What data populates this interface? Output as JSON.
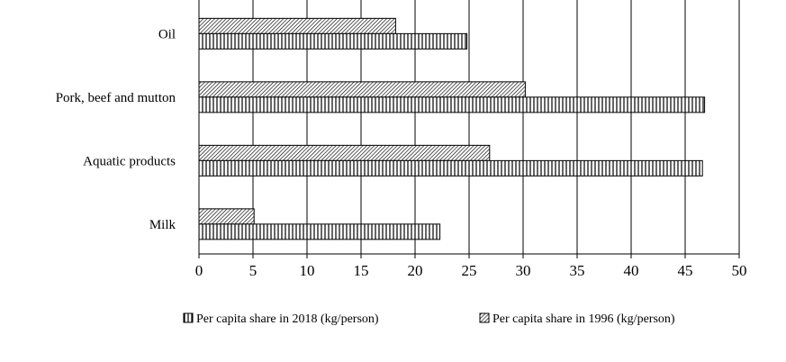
{
  "chart_data": {
    "type": "bar",
    "orientation": "horizontal",
    "title": "",
    "xlabel": "",
    "ylabel": "",
    "categories": [
      "Oil",
      "Pork, beef and mutton",
      "Aquatic products",
      "Milk"
    ],
    "series": [
      {
        "name": "Per capita share in 1996 (kg/person)",
        "values": [
          18.2,
          30.2,
          26.9,
          5.1
        ],
        "pattern": "diagonal-hatch"
      },
      {
        "name": "Per capita share in 2018 (kg/person)",
        "values": [
          24.8,
          46.8,
          46.6,
          22.3
        ],
        "pattern": "vertical-hatch"
      }
    ],
    "xlim": [
      0,
      50
    ],
    "xticks": [
      0,
      5,
      10,
      15,
      20,
      25,
      30,
      35,
      40,
      45,
      50
    ],
    "grid": "vertical",
    "legend_position": "bottom",
    "legend_order": [
      "Per capita share in 2018 (kg/person)",
      "Per capita share in 1996 (kg/person)"
    ]
  }
}
